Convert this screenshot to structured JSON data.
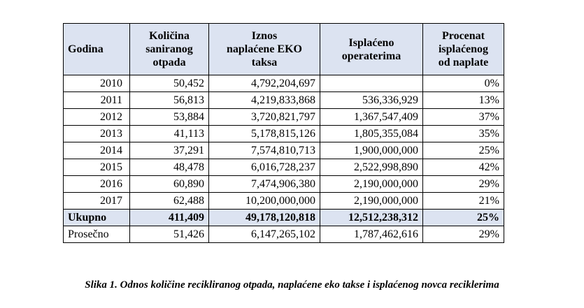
{
  "table": {
    "header": [
      [
        "Godina"
      ],
      [
        "Količina",
        "saniranog",
        "otpada"
      ],
      [
        "Iznos",
        "naplaćene EKO",
        "taksa"
      ],
      [
        "Isplaćeno",
        "operaterima"
      ],
      [
        "Procenat",
        "isplaćenog",
        "od naplate"
      ]
    ],
    "rows": [
      [
        "2010",
        "50,452",
        "4,792,204,697",
        null,
        "0%"
      ],
      [
        "2011",
        "56,813",
        "4,219,833,868",
        "536,336,929",
        "13%"
      ],
      [
        "2012",
        "53,884",
        "3,720,821,797",
        "1,367,547,409",
        "37%"
      ],
      [
        "2013",
        "41,113",
        "5,178,815,126",
        "1,805,355,084",
        "35%"
      ],
      [
        "2014",
        "37,291",
        "7,574,810,713",
        "1,900,000,000",
        "25%"
      ],
      [
        "2015",
        "48,478",
        "6,016,728,237",
        "2,522,998,890",
        "42%"
      ],
      [
        "2016",
        "60,890",
        "7,474,906,380",
        "2,190,000,000",
        "29%"
      ],
      [
        "2017",
        "62,488",
        "10,200,000,000",
        "2,190,000,000",
        "21%"
      ]
    ],
    "total": [
      "Ukupno",
      "411,409",
      "49,178,120,818",
      "12,512,238,312",
      "25%"
    ],
    "average": [
      "Prosečno",
      "51,426",
      "6,147,265,102",
      "1,787,462,616",
      "29%"
    ]
  },
  "caption": "Slika 1. Odnos količine recikliranog otpada, naplaćene eko takse i isplaćenog novca reciklerima"
}
